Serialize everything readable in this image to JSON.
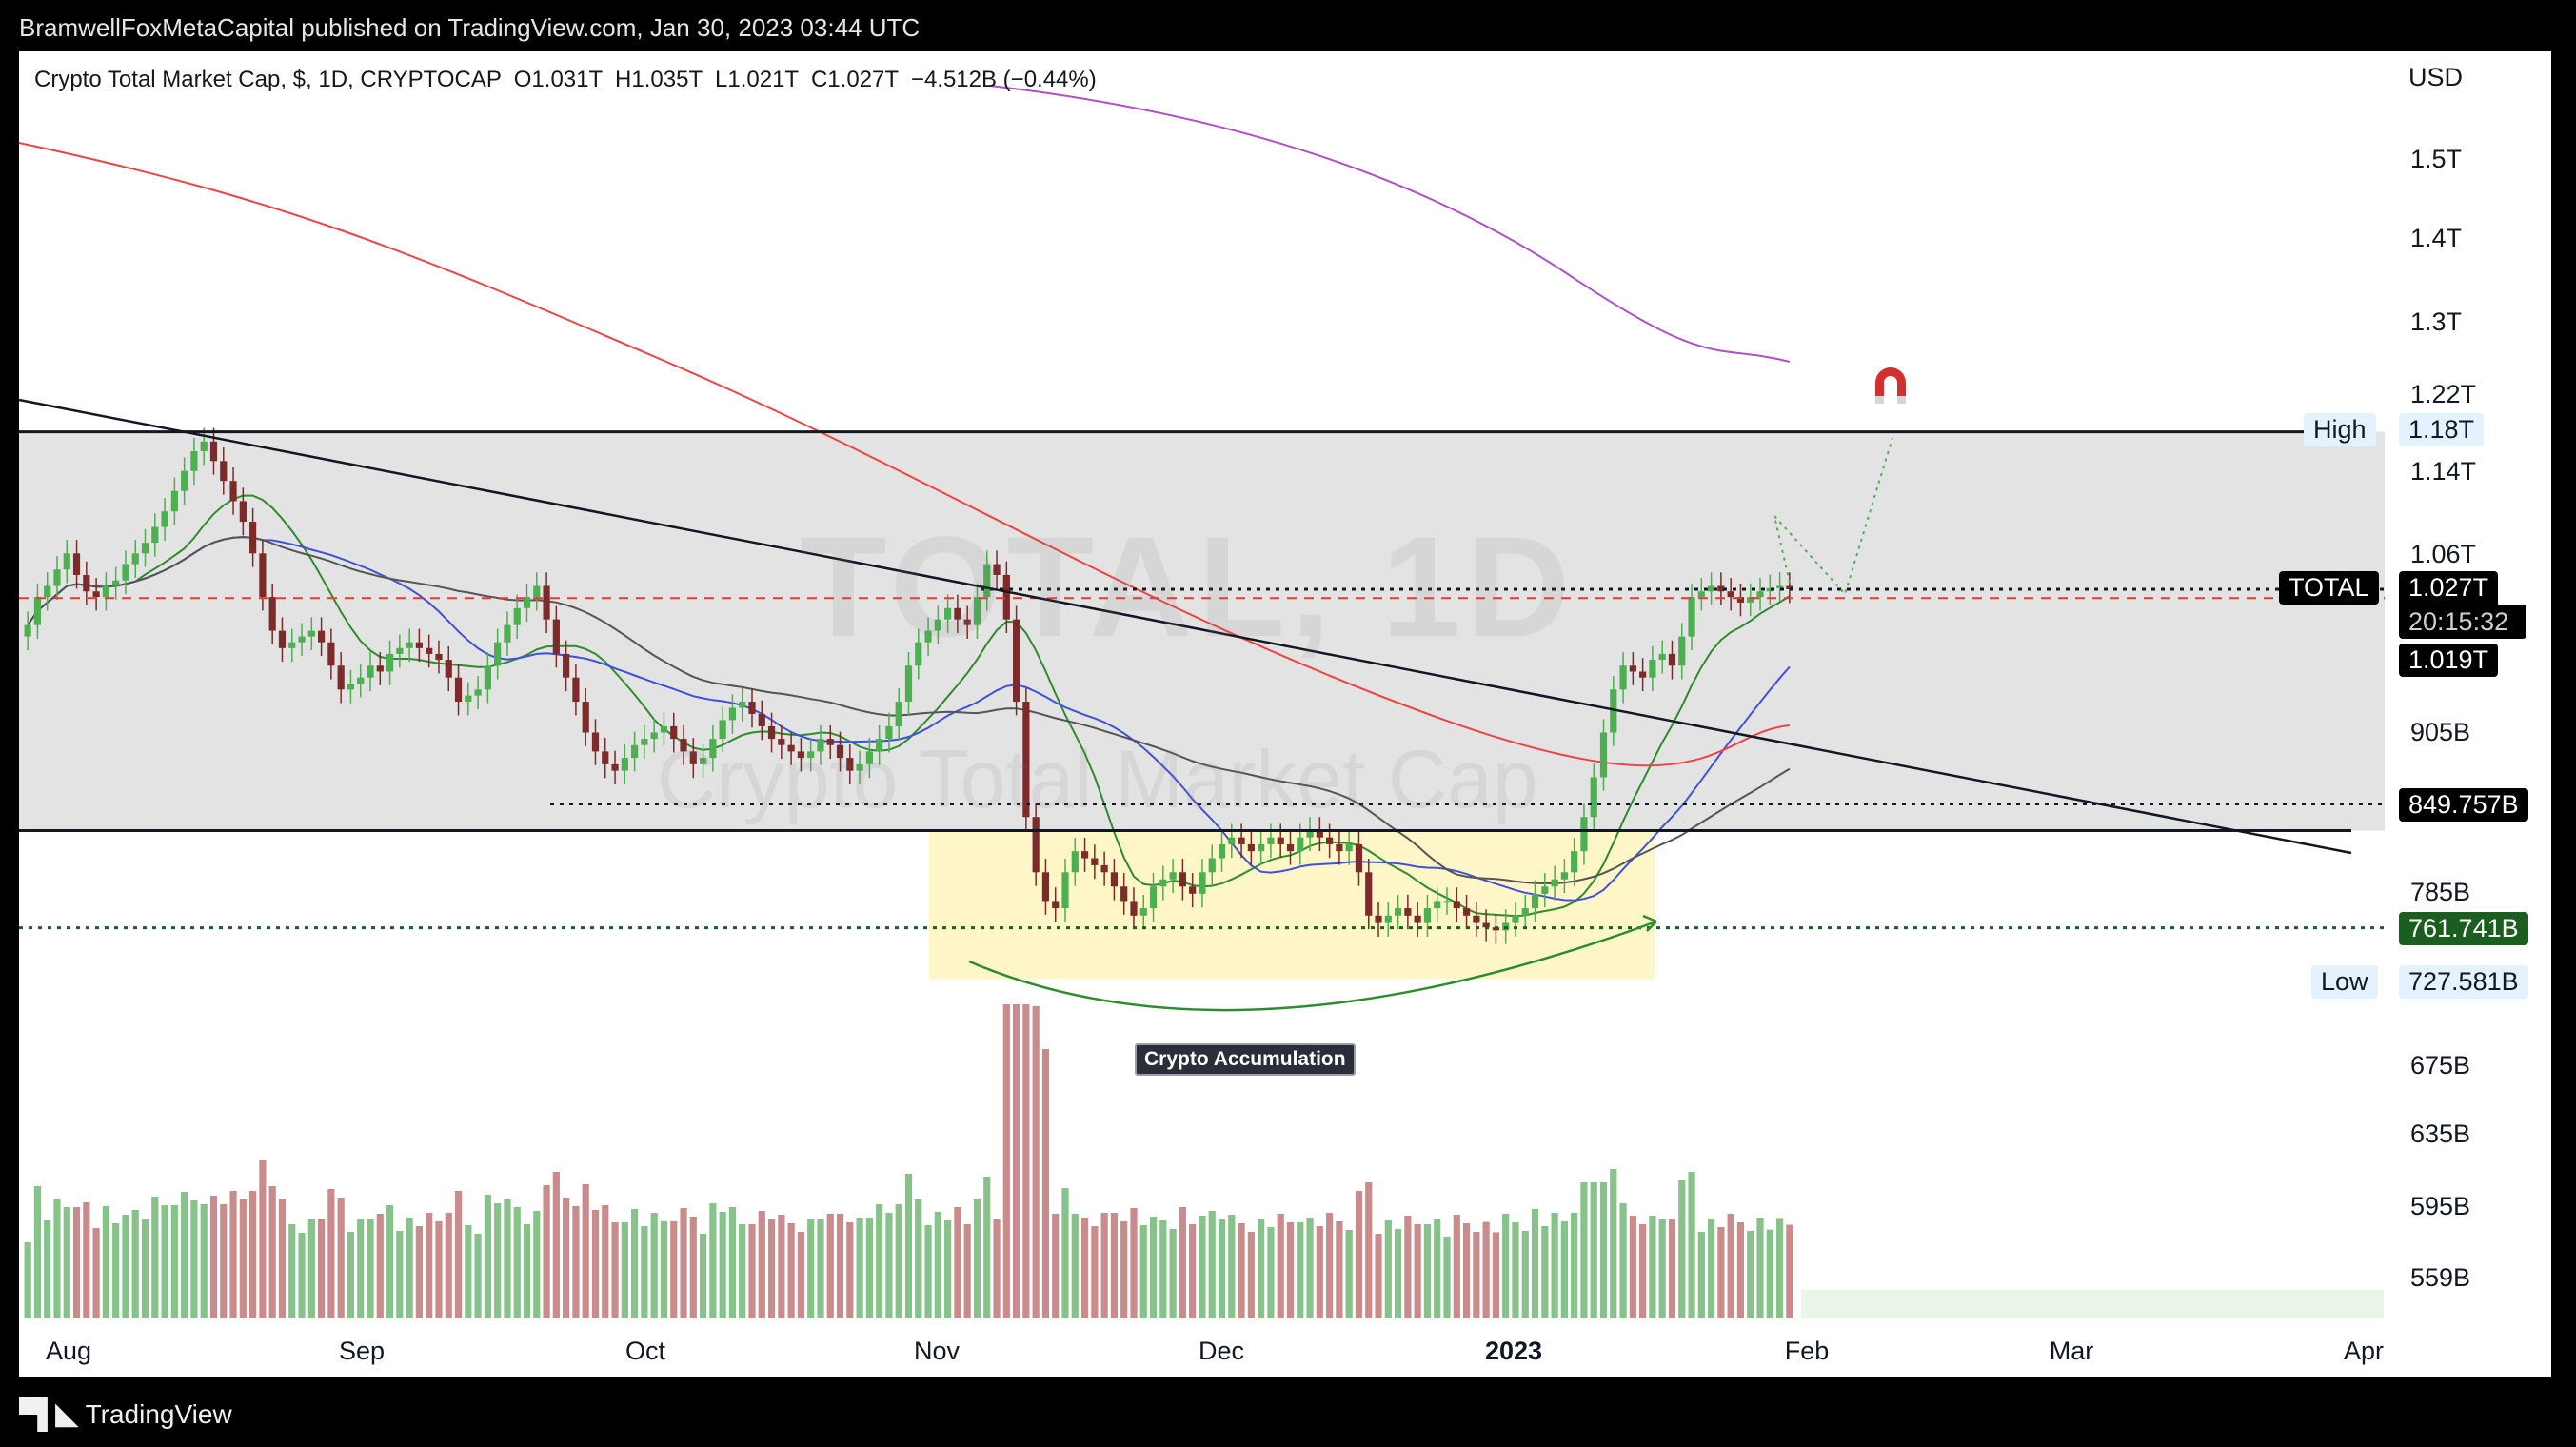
{
  "publish_line": "BramwellFoxMetaCapital published on TradingView.com, Jan 30, 2023 03:44 UTC",
  "legend": {
    "symbol": "Crypto Total Market Cap, $, 1D, CRYPTOCAP",
    "ohlc": "O1.031T  H1.035T  L1.021T  C1.027T  −4.512B (−0.44%)"
  },
  "currency": "USD",
  "watermark": {
    "big": "TOTAL, 1D",
    "small": "Crypto Total Market Cap"
  },
  "annotation": "Crypto Accumulation",
  "footer_brand": "TradingView",
  "price_tags": {
    "high_label": "High",
    "high_value": "1.18T",
    "total_label": "TOTAL",
    "total_value": "1.027T",
    "countdown": "20:15:32",
    "level_1019": "1.019T",
    "level_849": "849.757B",
    "level_761": "761.741B",
    "low_label": "Low",
    "low_value": "727.581B"
  },
  "colors": {
    "up": "#4caf50",
    "down": "#7d2a2a",
    "vol_up": "#86c28a",
    "vol_down": "#c98b8b",
    "ema_red": "#ef4444",
    "ema_purple": "#b050c8",
    "ema_blue": "#3f51d8",
    "ema_green": "#2e8b2e",
    "ema_gray": "#555555",
    "range_box": "#e3e3e3",
    "accum_box": "#fff6c8",
    "green_level": "#1b5e20",
    "red_level": "#e53935"
  },
  "chart_data": {
    "type": "candlestick",
    "title": "Crypto Total Market Cap, $, 1D, CRYPTOCAP",
    "y_scale": "log",
    "y_ticks": [
      "1.5T",
      "1.4T",
      "1.3T",
      "1.22T",
      "1.14T",
      "1.06T",
      "905B",
      "785B",
      "675B",
      "635B",
      "595B",
      "559B"
    ],
    "x_ticks": [
      "Aug",
      "Sep",
      "Oct",
      "Nov",
      "Dec",
      "2023",
      "Feb",
      "Mar",
      "Apr"
    ],
    "ohlc_last": {
      "open": 1.031,
      "high": 1.035,
      "low": 1.021,
      "close": 1.027,
      "change": "−4.512B",
      "change_pct": "−0.44%"
    },
    "levels": {
      "range_high": 1.18,
      "current": 1.027,
      "red_dashed": 1.019,
      "support": 0.849757,
      "accumulation_base": 0.761741,
      "low": 0.727581
    },
    "closes_approx": [
      0.995,
      1.02,
      1.03,
      1.045,
      1.06,
      1.04,
      1.025,
      1.02,
      1.03,
      1.035,
      1.05,
      1.06,
      1.07,
      1.085,
      1.1,
      1.12,
      1.14,
      1.16,
      1.17,
      1.15,
      1.13,
      1.11,
      1.09,
      1.06,
      1.02,
      0.99,
      0.975,
      0.98,
      0.985,
      0.99,
      0.98,
      0.96,
      0.94,
      0.945,
      0.95,
      0.96,
      0.955,
      0.97,
      0.975,
      0.98,
      0.975,
      0.97,
      0.965,
      0.95,
      0.93,
      0.935,
      0.94,
      0.96,
      0.98,
      0.995,
      1.01,
      1.02,
      1.03,
      1.0,
      0.97,
      0.95,
      0.93,
      0.905,
      0.89,
      0.88,
      0.875,
      0.885,
      0.895,
      0.9,
      0.905,
      0.91,
      0.9,
      0.89,
      0.88,
      0.885,
      0.9,
      0.915,
      0.925,
      0.93,
      0.92,
      0.91,
      0.9,
      0.895,
      0.89,
      0.885,
      0.89,
      0.9,
      0.895,
      0.885,
      0.875,
      0.88,
      0.89,
      0.9,
      0.91,
      0.93,
      0.96,
      0.98,
      0.99,
      1.0,
      1.01,
      1.0,
      0.995,
      1.02,
      1.05,
      1.04,
      1.0,
      0.93,
      0.84,
      0.8,
      0.78,
      0.775,
      0.8,
      0.815,
      0.81,
      0.805,
      0.8,
      0.79,
      0.78,
      0.77,
      0.775,
      0.79,
      0.795,
      0.8,
      0.79,
      0.785,
      0.8,
      0.81,
      0.82,
      0.825,
      0.82,
      0.815,
      0.82,
      0.825,
      0.82,
      0.815,
      0.825,
      0.83,
      0.825,
      0.82,
      0.815,
      0.82,
      0.8,
      0.77,
      0.765,
      0.77,
      0.775,
      0.77,
      0.765,
      0.775,
      0.78,
      0.78,
      0.775,
      0.77,
      0.765,
      0.762,
      0.76,
      0.765,
      0.77,
      0.775,
      0.785,
      0.79,
      0.795,
      0.8,
      0.815,
      0.84,
      0.87,
      0.905,
      0.94,
      0.96,
      0.955,
      0.95,
      0.965,
      0.97,
      0.96,
      0.985,
      1.02,
      1.025,
      1.03,
      1.025,
      1.02,
      1.015,
      1.02,
      1.025,
      1.028,
      1.03,
      1.027
    ],
    "annotations": [
      "Crypto Accumulation"
    ]
  }
}
